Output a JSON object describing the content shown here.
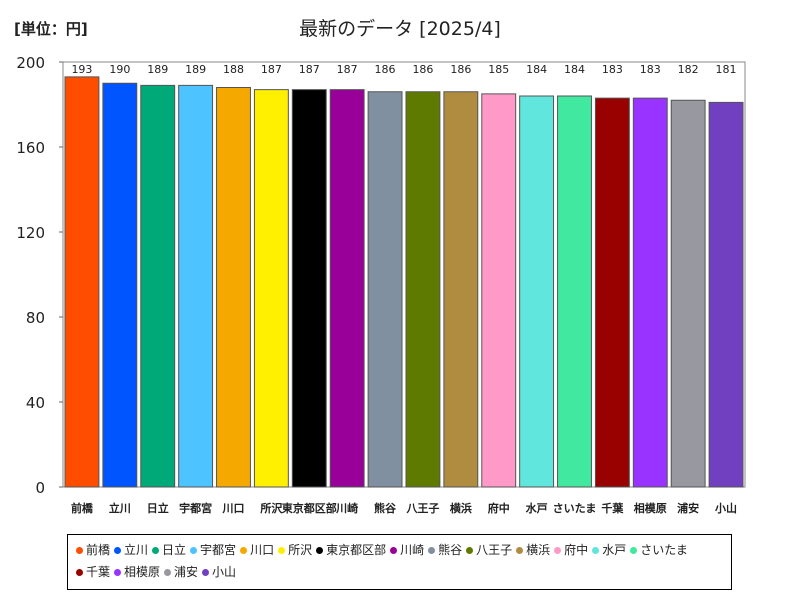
{
  "chart_data": {
    "type": "bar",
    "title": "最新のデータ [2025/4]",
    "unit_label": "[単位：円]",
    "xlabel": "",
    "ylabel": "",
    "ylim": [
      0,
      200
    ],
    "yticks": [
      0,
      40,
      80,
      120,
      160,
      200
    ],
    "grid": false,
    "legend_position": "bottom",
    "categories": [
      "前橋",
      "立川",
      "日立",
      "宇都宮",
      "川口",
      "所沢",
      "東京都区部",
      "川崎",
      "熊谷",
      "八王子",
      "横浜",
      "府中",
      "水戸",
      "さいたま",
      "千葉",
      "相模原",
      "浦安",
      "小山"
    ],
    "values": [
      193,
      190,
      189,
      189,
      188,
      187,
      187,
      187,
      186,
      186,
      186,
      185,
      184,
      184,
      183,
      183,
      182,
      181
    ],
    "colors": [
      "#ff4d00",
      "#0055ff",
      "#00aa78",
      "#4dc3ff",
      "#f5a800",
      "#fff000",
      "#000000",
      "#990099",
      "#8090a0",
      "#5f7a00",
      "#b08c40",
      "#ff99c8",
      "#60e6dc",
      "#40e8a0",
      "#990000",
      "#9933ff",
      "#9898a0",
      "#7040c0"
    ],
    "legend": [
      "前橋",
      "立川",
      "日立",
      "宇都宮",
      "川口",
      "所沢",
      "東京都区部",
      "川崎",
      "熊谷",
      "八王子",
      "横浜",
      "府中",
      "水戸",
      "さいたま",
      "千葉",
      "相模原",
      "浦安",
      "小山"
    ]
  }
}
